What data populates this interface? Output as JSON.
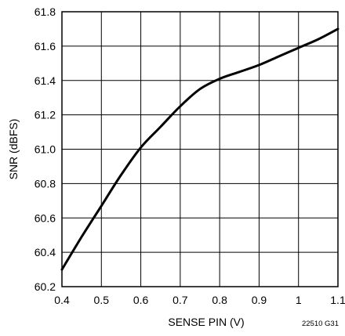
{
  "chart_data": {
    "type": "line",
    "title": "",
    "xlabel": "SENSE PIN (V)",
    "ylabel": "SNR (dBFS)",
    "figure_id": "22510 G31",
    "xlim": [
      0.4,
      1.1
    ],
    "ylim": [
      60.2,
      61.8
    ],
    "grid": true,
    "legend": "none",
    "x_ticks": [
      0.4,
      0.5,
      0.6,
      0.7,
      0.8,
      0.9,
      1.0,
      1.1
    ],
    "x_tick_labels": [
      "0.4",
      "0.5",
      "0.6",
      "0.7",
      "0.8",
      "0.9",
      "1",
      "1.1"
    ],
    "y_ticks": [
      60.2,
      60.4,
      60.6,
      60.8,
      61.0,
      61.2,
      61.4,
      61.6,
      61.8
    ],
    "y_tick_labels": [
      "60.2",
      "60.4",
      "60.6",
      "60.8",
      "61.0",
      "61.2",
      "61.4",
      "61.6",
      "61.8"
    ],
    "series": [
      {
        "color": "#000000",
        "x": [
          0.4,
          0.45,
          0.5,
          0.55,
          0.6,
          0.65,
          0.7,
          0.75,
          0.8,
          0.85,
          0.9,
          0.95,
          1.0,
          1.05,
          1.1
        ],
        "values": [
          60.3,
          60.49,
          60.67,
          60.85,
          61.01,
          61.13,
          61.25,
          61.35,
          61.41,
          61.45,
          61.49,
          61.54,
          61.59,
          61.64,
          61.7
        ]
      }
    ]
  }
}
